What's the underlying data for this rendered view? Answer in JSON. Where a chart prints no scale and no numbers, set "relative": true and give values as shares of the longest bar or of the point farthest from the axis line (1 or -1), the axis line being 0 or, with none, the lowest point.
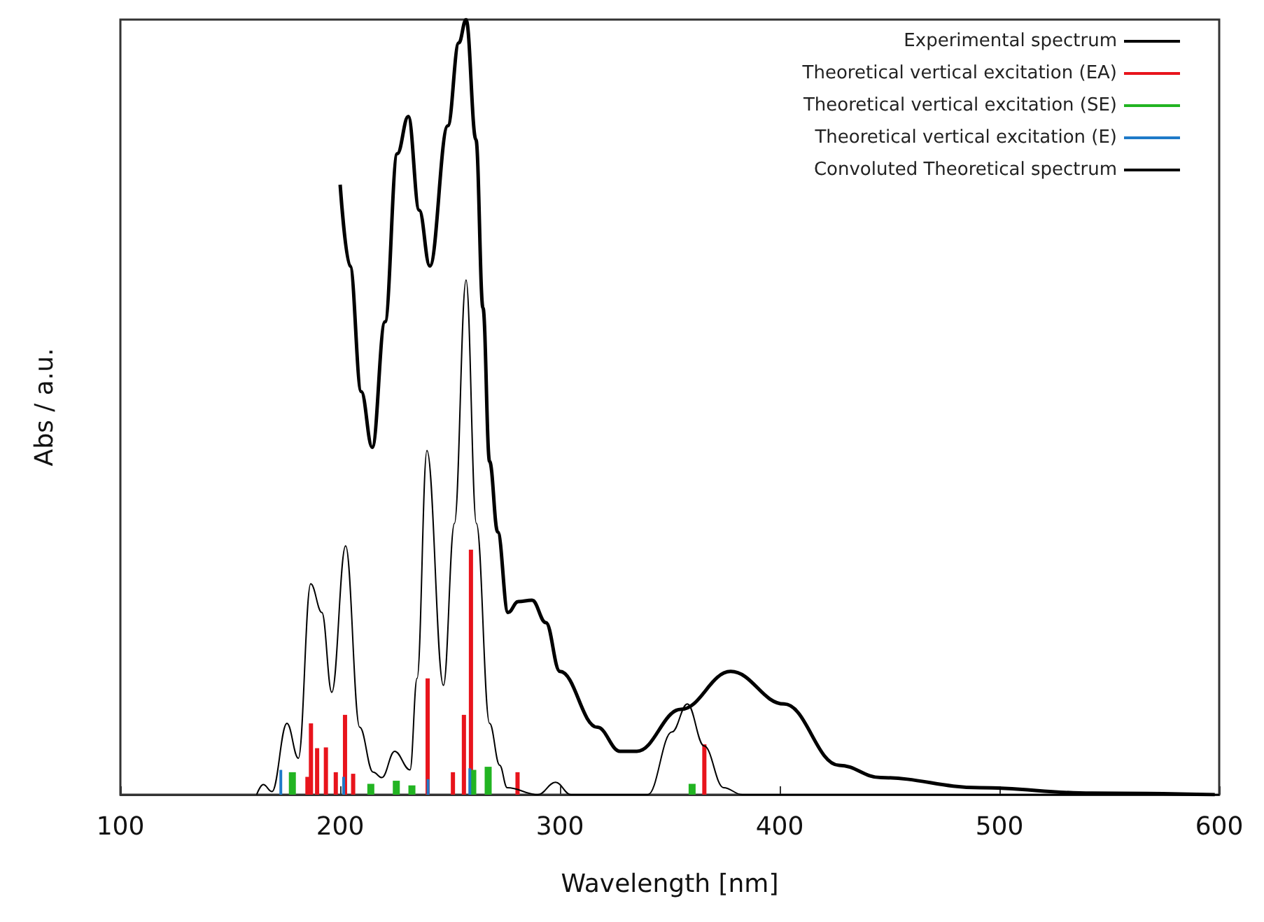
{
  "chart_data": {
    "type": "line",
    "relative": true,
    "xlabel": "Wavelength [nm]",
    "ylabel": "Abs / a.u.",
    "xlim": [
      100,
      600
    ],
    "xticks": [
      100,
      200,
      300,
      400,
      500,
      600
    ],
    "legend": "top right",
    "grid": false,
    "marker": "none",
    "series": [
      {
        "name": "Experimental spectrum",
        "color": "#000000",
        "x": [
          200,
          204.5,
          209.6,
          214.6,
          220.4,
          226,
          231,
          236,
          240.8,
          249,
          254,
          257.3,
          261.8,
          265,
          268,
          271.7,
          276.4,
          281,
          287.3,
          293.6,
          300,
          317,
          327.4,
          335,
          355,
          377.7,
          402,
          427,
          446,
          491,
          542,
          598
        ],
        "values": [
          0.787,
          0.682,
          0.52,
          0.448,
          0.61,
          0.827,
          0.875,
          0.754,
          0.682,
          0.863,
          0.97,
          1.0,
          0.845,
          0.628,
          0.43,
          0.339,
          0.235,
          0.249,
          0.251,
          0.222,
          0.159,
          0.087,
          0.056,
          0.056,
          0.11,
          0.159,
          0.117,
          0.038,
          0.022,
          0.009,
          0.002,
          0
        ]
      },
      {
        "name": "Theoretical vertical excitation (EA)",
        "type": "bar",
        "color": "#e8141c",
        "x": [
          184.8,
          186.4,
          189.2,
          193.2,
          197.7,
          201.9,
          205.6,
          239.5,
          251,
          256,
          259.2,
          280.4,
          365.4
        ],
        "values": [
          0.023,
          0.092,
          0.06,
          0.061,
          0.029,
          0.103,
          0.027,
          0.15,
          0.029,
          0.103,
          0.316,
          0.029,
          0.065
        ]
      },
      {
        "name": "Theoretical vertical excitation (SE)",
        "type": "bar",
        "color": "#22b422",
        "x": [
          177.3,
          213,
          224.6,
          231.7,
          259.4,
          266.4,
          359.2
        ],
        "values": [
          0.029,
          0.014,
          0.018,
          0.012,
          0.032,
          0.036,
          0.014
        ]
      },
      {
        "name": "Theoretical vertical excitation (E)",
        "type": "bar",
        "color": "#1f7ac8",
        "x": [
          173,
          201.6,
          240,
          259
        ],
        "values": [
          0.032,
          0.023,
          0.02,
          0.034
        ]
      },
      {
        "name": "Convoluted Theoretical spectrum",
        "color": "#000000",
        "x": [
          162,
          165,
          169,
          175.8,
          181,
          186.6,
          191.7,
          196.2,
          202.5,
          208.9,
          215,
          219,
          224.8,
          231.8,
          235,
          239.5,
          247,
          252,
          257.3,
          262,
          268,
          272.6,
          276,
          290,
          298,
          305,
          340,
          351,
          358,
          365.6,
          374.5,
          383,
          600
        ],
        "values": [
          0,
          0.013,
          0.004,
          0.092,
          0.047,
          0.272,
          0.235,
          0.132,
          0.321,
          0.087,
          0.029,
          0.022,
          0.056,
          0.032,
          0.15,
          0.444,
          0.141,
          0.35,
          0.664,
          0.35,
          0.092,
          0.038,
          0.009,
          0,
          0.016,
          0,
          0,
          0.081,
          0.117,
          0.063,
          0.009,
          0,
          0
        ]
      }
    ]
  }
}
